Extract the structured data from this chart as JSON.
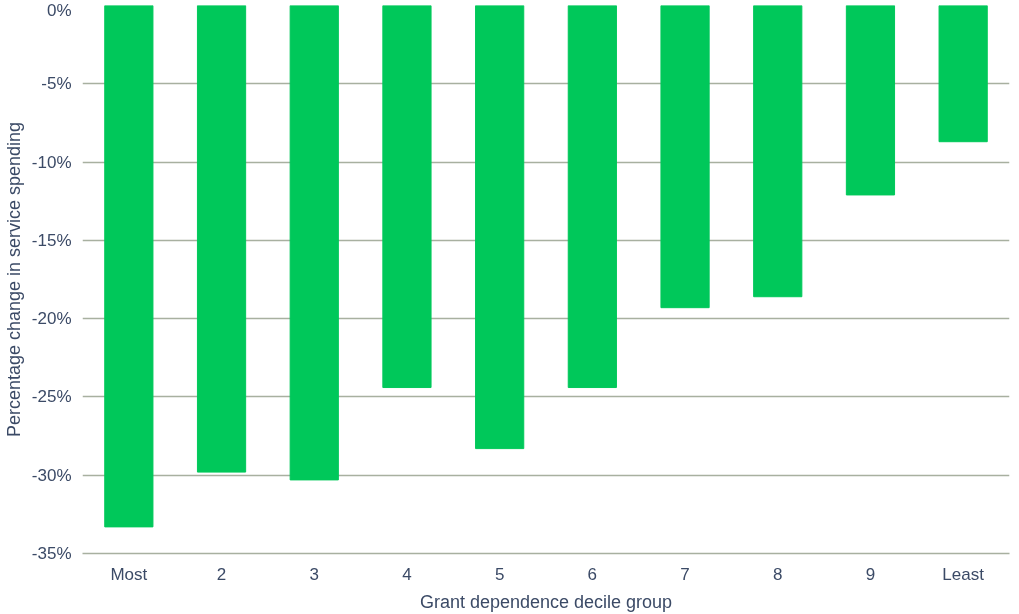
{
  "chart_data": {
    "type": "bar",
    "xlabel": "Grant dependence decile group",
    "ylabel": "Percentage change in service spending",
    "categories": [
      "Most",
      "2",
      "3",
      "4",
      "5",
      "6",
      "7",
      "8",
      "9",
      "Least"
    ],
    "values": [
      -33.3,
      -29.8,
      -30.3,
      -24.4,
      -28.3,
      -24.4,
      -19.3,
      -18.6,
      -12.1,
      -8.7
    ],
    "color": "#00c85a",
    "ylim": [
      -35,
      0
    ],
    "yticks": [
      {
        "value": -35,
        "label": "-35%"
      },
      {
        "value": -30,
        "label": "-30%"
      },
      {
        "value": -25,
        "label": "-25%"
      },
      {
        "value": -20,
        "label": "-20%"
      },
      {
        "value": -15,
        "label": "-15%"
      },
      {
        "value": -10,
        "label": "-10%"
      },
      {
        "value": -5,
        "label": "-5%"
      },
      {
        "value": 0,
        "label": "0%"
      }
    ],
    "grid": "y"
  }
}
